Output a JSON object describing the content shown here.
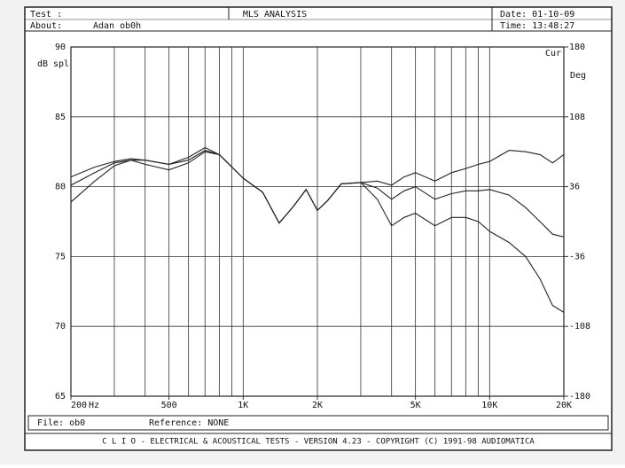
{
  "header": {
    "test": "Test :",
    "title": "MLS ANALYSIS",
    "date": "Date: 01-10-09",
    "about_label": "About:",
    "about": "Adan ob0h",
    "time": "Time: 13:48:27"
  },
  "footer": {
    "file": "File: ob0",
    "reference": "Reference: NONE",
    "banner": "C L I O   -   ELECTRICAL & ACOUSTICAL TESTS   -   VERSION 4.23   -   COPYRIGHT (C) 1991-98 AUDIOMATICA"
  },
  "chart_data": {
    "type": "line",
    "x_unit": "Hz",
    "y_label": "dB spl",
    "y2_label": "Deg",
    "y2_top_label": "Cur",
    "xscale": "log",
    "grid": true,
    "x": [
      200,
      250,
      300,
      350,
      400,
      500,
      600,
      700,
      800,
      900,
      1000,
      1200,
      1400,
      1600,
      1800,
      2000,
      2200,
      2500,
      3000,
      3500,
      4000,
      4500,
      5000,
      6000,
      7000,
      8000,
      9000,
      10000,
      12000,
      14000,
      16000,
      18000,
      20000
    ],
    "series": [
      {
        "color": "#222222",
        "values": [
          80.7,
          81.4,
          81.8,
          82.0,
          81.9,
          81.6,
          81.9,
          82.6,
          82.3,
          81.4,
          80.6,
          79.6,
          77.4,
          78.6,
          79.8,
          78.3,
          79.0,
          80.2,
          80.3,
          80.4,
          80.1,
          80.7,
          81.0,
          80.4,
          81.0,
          81.3,
          81.6,
          81.8,
          82.6,
          82.5,
          82.3,
          81.7,
          82.3
        ]
      },
      {
        "color": "#222222",
        "values": [
          80.1,
          81.0,
          81.7,
          81.9,
          81.6,
          81.2,
          81.7,
          82.5,
          82.3,
          81.4,
          80.6,
          79.6,
          77.4,
          78.6,
          79.8,
          78.3,
          79.0,
          80.2,
          80.3,
          79.9,
          79.1,
          79.7,
          80.0,
          79.1,
          79.5,
          79.7,
          79.7,
          79.8,
          79.4,
          78.5,
          77.5,
          76.6,
          76.4
        ]
      },
      {
        "color": "#222222",
        "values": [
          78.9,
          80.4,
          81.5,
          81.9,
          81.9,
          81.6,
          82.1,
          82.8,
          82.3,
          81.4,
          80.6,
          79.6,
          77.4,
          78.6,
          79.8,
          78.3,
          79.0,
          80.2,
          80.3,
          79.1,
          77.2,
          77.8,
          78.1,
          77.2,
          77.8,
          77.8,
          77.5,
          76.8,
          76.0,
          75.0,
          73.4,
          71.5,
          71.0
        ]
      }
    ],
    "xlim": [
      200,
      20000
    ],
    "xticks": [
      200,
      500,
      {
        "value": 1000,
        "label": "1K"
      },
      {
        "value": 2000,
        "label": "2K"
      },
      {
        "value": 5000,
        "label": "5K"
      },
      {
        "value": 10000,
        "label": "10K"
      },
      {
        "value": 20000,
        "label": "20K"
      }
    ],
    "xgrid": [
      200,
      300,
      400,
      500,
      600,
      700,
      800,
      900,
      1000,
      2000,
      3000,
      4000,
      5000,
      6000,
      7000,
      8000,
      9000,
      10000,
      20000
    ],
    "ylim": [
      65,
      90
    ],
    "yticks": [
      65,
      70,
      75,
      80,
      85,
      90
    ],
    "y2lim": [
      -180,
      180
    ],
    "y2ticks": [
      -180,
      -108,
      -36,
      36,
      108,
      180
    ]
  }
}
